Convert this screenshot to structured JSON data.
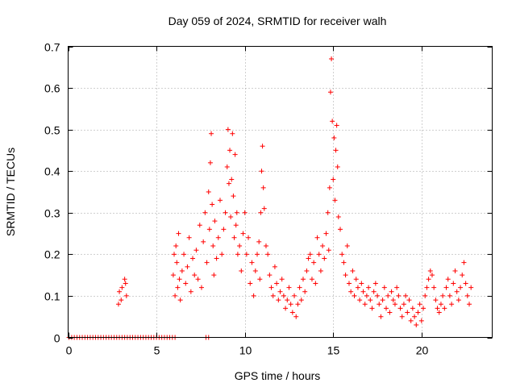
{
  "chart_data": {
    "type": "scatter",
    "title": "Day 059 of 2024, SRMTID for receiver walh",
    "xlabel": "GPS time / hours",
    "ylabel": "SRMTID / TECUs",
    "xlim": [
      0,
      24
    ],
    "ylim": [
      0,
      0.7
    ],
    "xticks": [
      0,
      5,
      10,
      15,
      20
    ],
    "xtick_labels": [
      "0",
      "5",
      "10",
      "15",
      "20"
    ],
    "yticks": [
      0,
      0.1,
      0.2,
      0.3,
      0.4,
      0.5,
      0.6,
      0.7
    ],
    "ytick_labels": [
      "0",
      "0.1",
      "0.2",
      "0.3",
      "0.4",
      "0.5",
      "0.6",
      "0.7"
    ],
    "grid": true,
    "marker": "+",
    "color": "#ff0000",
    "series": [
      {
        "name": "SRMTID",
        "x": [
          0.05,
          0.2,
          0.35,
          0.5,
          0.65,
          0.8,
          0.95,
          1.1,
          1.25,
          1.4,
          1.55,
          1.7,
          1.85,
          2.0,
          2.15,
          2.3,
          2.45,
          2.6,
          2.75,
          2.9,
          3.05,
          3.2,
          3.35,
          3.5,
          3.65,
          3.8,
          3.95,
          4.1,
          4.25,
          4.4,
          4.55,
          4.7,
          4.85,
          5.0,
          5.15,
          5.3,
          5.45,
          5.6,
          5.75,
          5.9,
          6.05,
          7.8,
          7.95,
          2.85,
          2.9,
          3.0,
          3.05,
          3.2,
          3.25,
          3.3,
          5.95,
          6.0,
          6.05,
          6.1,
          6.15,
          6.2,
          6.25,
          6.3,
          6.35,
          6.45,
          6.55,
          6.65,
          6.75,
          6.85,
          6.95,
          7.05,
          7.15,
          7.25,
          7.35,
          7.45,
          7.55,
          7.65,
          7.75,
          7.85,
          7.95,
          8.0,
          8.05,
          8.1,
          8.15,
          8.2,
          8.25,
          8.3,
          8.4,
          8.5,
          8.6,
          8.7,
          8.8,
          8.9,
          9.0,
          9.05,
          9.1,
          9.15,
          9.2,
          9.25,
          9.3,
          9.35,
          9.4,
          9.45,
          9.5,
          9.55,
          9.6,
          9.7,
          9.8,
          9.9,
          10.0,
          10.1,
          10.2,
          10.3,
          10.4,
          10.5,
          10.6,
          10.7,
          10.8,
          10.85,
          10.9,
          10.95,
          11.0,
          11.05,
          11.1,
          11.2,
          11.3,
          11.4,
          11.5,
          11.6,
          11.7,
          11.8,
          11.9,
          12.0,
          12.1,
          12.2,
          12.3,
          12.4,
          12.5,
          12.6,
          12.7,
          12.8,
          12.9,
          13.0,
          13.1,
          13.2,
          13.3,
          13.4,
          13.5,
          13.6,
          13.7,
          13.8,
          13.9,
          14.0,
          14.1,
          14.2,
          14.3,
          14.4,
          14.5,
          14.6,
          14.7,
          14.75,
          14.8,
          14.85,
          14.9,
          14.95,
          15.0,
          15.05,
          15.1,
          15.15,
          15.2,
          15.25,
          15.3,
          15.4,
          15.5,
          15.6,
          15.7,
          15.8,
          15.9,
          16.0,
          16.1,
          16.2,
          16.3,
          16.4,
          16.5,
          16.6,
          16.7,
          16.8,
          16.9,
          17.0,
          17.1,
          17.2,
          17.3,
          17.4,
          17.5,
          17.6,
          17.7,
          17.8,
          17.9,
          18.0,
          18.1,
          18.2,
          18.3,
          18.4,
          18.5,
          18.6,
          18.7,
          18.8,
          18.9,
          19.0,
          19.1,
          19.2,
          19.3,
          19.4,
          19.5,
          19.6,
          19.7,
          19.8,
          19.9,
          20.0,
          20.1,
          20.2,
          20.3,
          20.4,
          20.5,
          20.6,
          20.7,
          20.8,
          20.9,
          21.0,
          21.1,
          21.2,
          21.3,
          21.4,
          21.5,
          21.6,
          21.7,
          21.8,
          21.9,
          22.0,
          22.1,
          22.2,
          22.3,
          22.4,
          22.5,
          22.6,
          22.7,
          22.8
        ],
        "y": [
          0,
          0,
          0,
          0,
          0,
          0,
          0,
          0,
          0,
          0,
          0,
          0,
          0,
          0,
          0,
          0,
          0,
          0,
          0,
          0,
          0,
          0,
          0,
          0,
          0,
          0,
          0,
          0,
          0,
          0,
          0,
          0,
          0,
          0,
          0,
          0,
          0,
          0,
          0,
          0,
          0,
          0,
          0,
          0.08,
          0.11,
          0.09,
          0.12,
          0.14,
          0.13,
          0.1,
          0.15,
          0.2,
          0.1,
          0.22,
          0.18,
          0.12,
          0.25,
          0.14,
          0.09,
          0.16,
          0.2,
          0.13,
          0.17,
          0.24,
          0.11,
          0.19,
          0.15,
          0.21,
          0.14,
          0.27,
          0.12,
          0.23,
          0.3,
          0.18,
          0.35,
          0.26,
          0.42,
          0.49,
          0.32,
          0.22,
          0.15,
          0.28,
          0.19,
          0.24,
          0.33,
          0.2,
          0.26,
          0.3,
          0.41,
          0.5,
          0.37,
          0.45,
          0.29,
          0.38,
          0.49,
          0.34,
          0.24,
          0.44,
          0.27,
          0.3,
          0.2,
          0.22,
          0.16,
          0.25,
          0.3,
          0.2,
          0.24,
          0.13,
          0.18,
          0.1,
          0.16,
          0.2,
          0.23,
          0.14,
          0.3,
          0.4,
          0.46,
          0.36,
          0.31,
          0.22,
          0.2,
          0.15,
          0.12,
          0.1,
          0.17,
          0.13,
          0.09,
          0.11,
          0.14,
          0.1,
          0.07,
          0.09,
          0.12,
          0.08,
          0.06,
          0.1,
          0.05,
          0.08,
          0.12,
          0.09,
          0.14,
          0.11,
          0.16,
          0.19,
          0.2,
          0.14,
          0.18,
          0.13,
          0.24,
          0.2,
          0.16,
          0.22,
          0.19,
          0.25,
          0.3,
          0.21,
          0.36,
          0.59,
          0.67,
          0.52,
          0.38,
          0.48,
          0.33,
          0.45,
          0.51,
          0.41,
          0.29,
          0.26,
          0.2,
          0.18,
          0.15,
          0.22,
          0.13,
          0.11,
          0.16,
          0.1,
          0.14,
          0.12,
          0.09,
          0.13,
          0.11,
          0.08,
          0.1,
          0.12,
          0.09,
          0.07,
          0.11,
          0.13,
          0.1,
          0.08,
          0.05,
          0.09,
          0.12,
          0.07,
          0.1,
          0.06,
          0.11,
          0.09,
          0.08,
          0.12,
          0.1,
          0.07,
          0.05,
          0.08,
          0.1,
          0.06,
          0.09,
          0.04,
          0.07,
          0.05,
          0.03,
          0.06,
          0.08,
          0.04,
          0.07,
          0.1,
          0.12,
          0.14,
          0.16,
          0.15,
          0.12,
          0.09,
          0.07,
          0.06,
          0.08,
          0.1,
          0.07,
          0.12,
          0.14,
          0.1,
          0.08,
          0.13,
          0.16,
          0.11,
          0.09,
          0.12,
          0.15,
          0.18,
          0.13,
          0.1,
          0.08,
          0.12
        ]
      }
    ]
  }
}
